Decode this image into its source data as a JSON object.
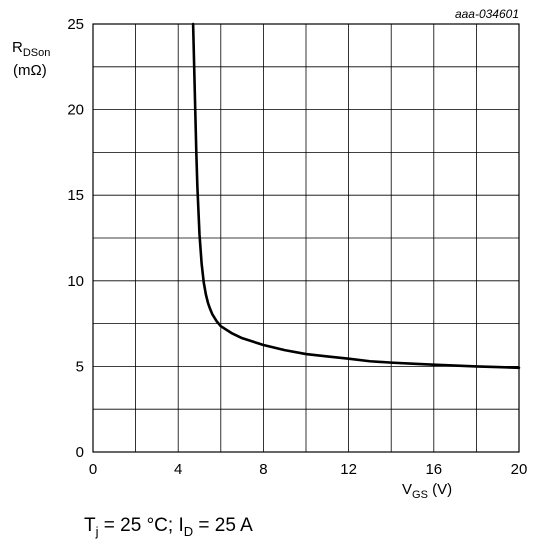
{
  "figure_id": "aaa-034601",
  "conditions": {
    "tj_symbol": "T",
    "tj_sub": "j",
    "tj_value": " = 25 °C; I",
    "id_sub": "D",
    "id_value": " = 25 A"
  },
  "chart_data": {
    "type": "line",
    "title": "",
    "xlabel": {
      "main": "V",
      "sub": "GS",
      "unit": " (V)"
    },
    "ylabel": {
      "main": "R",
      "sub": "DSon",
      "unit": "(mΩ)"
    },
    "xlim": [
      0,
      20
    ],
    "ylim": [
      0,
      25
    ],
    "x_ticks": [
      0,
      4,
      8,
      12,
      16,
      20
    ],
    "y_ticks": [
      0,
      5,
      10,
      15,
      20,
      25
    ],
    "x_grid_step": 2,
    "y_grid_step": 2.5,
    "grid": true,
    "series": [
      {
        "x": [
          4.7,
          4.75,
          4.8,
          4.85,
          4.9,
          5.0,
          5.1,
          5.2,
          5.3,
          5.4,
          5.5,
          5.6,
          5.8,
          6.0,
          6.5,
          7.0,
          8.0,
          9.0,
          10.0,
          11.0,
          12.0,
          13.0,
          14.0,
          15.0,
          16.0,
          17.0,
          18.0,
          19.0,
          20.0
        ],
        "y": [
          25.0,
          22.5,
          20.0,
          17.5,
          15.5,
          12.7,
          11.0,
          9.9,
          9.2,
          8.7,
          8.35,
          8.05,
          7.65,
          7.35,
          6.95,
          6.65,
          6.25,
          5.95,
          5.72,
          5.58,
          5.45,
          5.3,
          5.22,
          5.16,
          5.1,
          5.05,
          5.0,
          4.96,
          4.92
        ]
      }
    ]
  }
}
